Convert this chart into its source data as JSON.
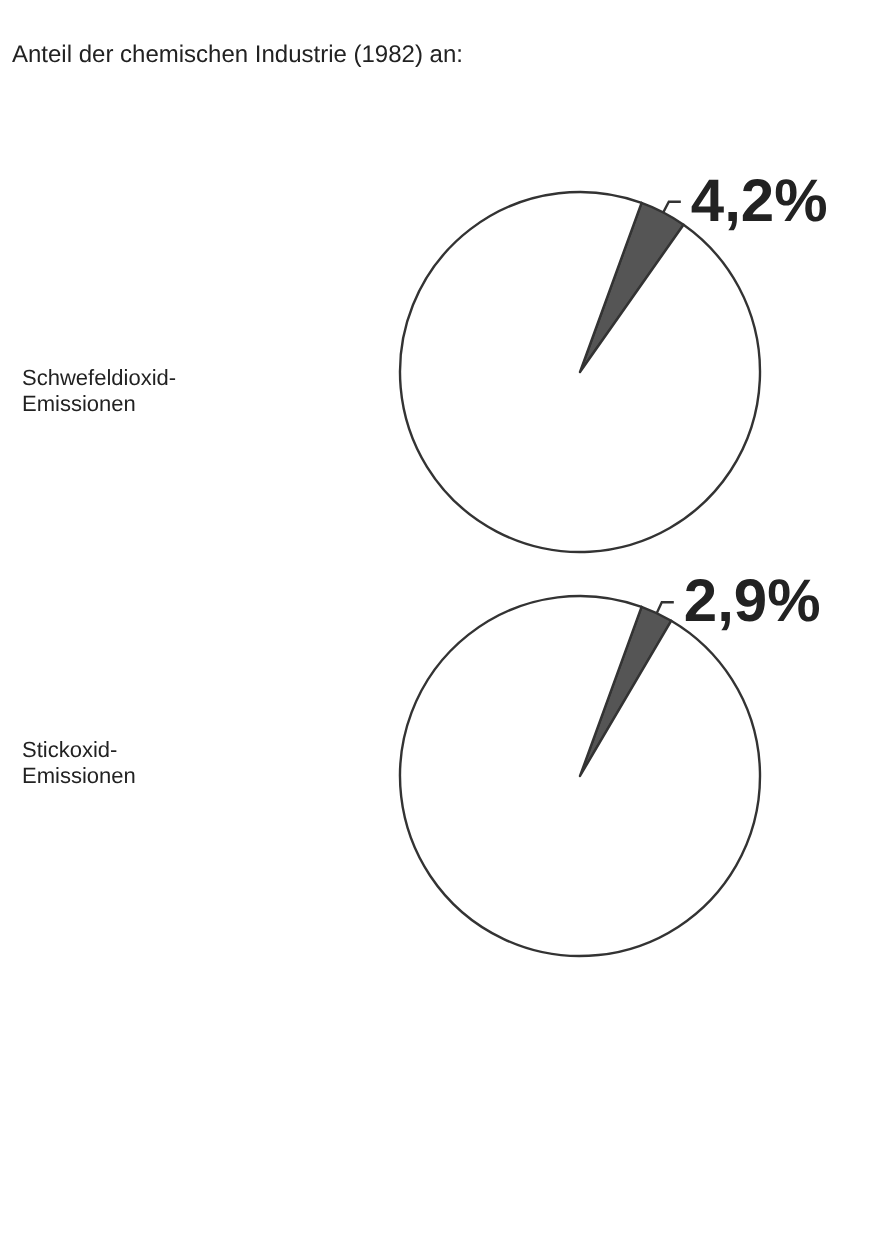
{
  "chart_data": [
    {
      "type": "pie",
      "title": "Schwefeldioxid-Emissionen",
      "annotations": [
        "Anteil der chemischen Industrie (1982) an:"
      ],
      "categories": [
        null,
        null
      ],
      "values": [
        4.2,
        95.8
      ],
      "colors": [
        "#555555",
        "#ffffff"
      ],
      "value_labels": [
        "4,2%",
        null
      ]
    },
    {
      "type": "pie",
      "title": "Stickoxid-Emissionen",
      "categories": [
        null,
        null
      ],
      "values": [
        2.9,
        97.1
      ],
      "colors": [
        "#555555",
        "#ffffff"
      ],
      "value_labels": [
        "2,9%",
        null
      ]
    }
  ]
}
